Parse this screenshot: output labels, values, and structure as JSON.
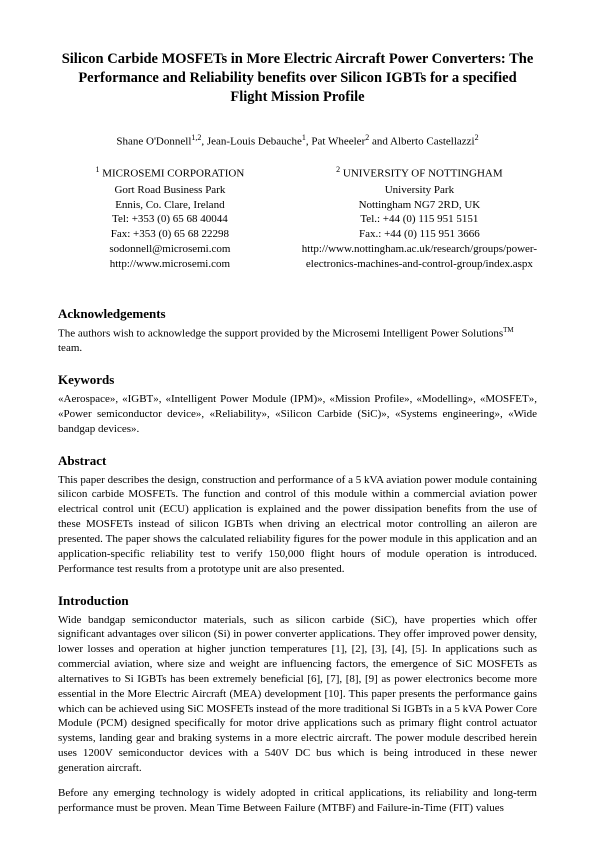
{
  "title": "Silicon Carbide MOSFETs in More Electric Aircraft Power Converters: The Performance and Reliability benefits over Silicon IGBTs for a specified Flight Mission Profile",
  "authors_prefix": "Shane O'Donnell",
  "authors_sup1": "1,2",
  "authors_mid": ", Jean-Louis Debauche",
  "authors_sup2": "1",
  "authors_mid2": ", Pat Wheeler",
  "authors_sup3": "2",
  "authors_mid3": " and Alberto Castellazzi",
  "authors_sup4": "2",
  "affil1": {
    "sup": "1",
    "name": " MICROSEMI CORPORATION",
    "line1": "Gort Road Business Park",
    "line2": "Ennis, Co. Clare, Ireland",
    "line3": "Tel: +353 (0) 65 68 40044",
    "line4": "Fax: +353 (0) 65 68 22298",
    "line5": "sodonnell@microsemi.com",
    "line6": "http://www.microsemi.com"
  },
  "affil2": {
    "sup": "2",
    "name": " UNIVERSITY OF NOTTINGHAM",
    "line1": "University Park",
    "line2": "Nottingham NG7 2RD, UK",
    "line3": "Tel.: +44 (0) 115 951 5151",
    "line4": "Fax.: +44 (0) 115 951 3666",
    "line5": "http://www.nottingham.ac.uk/research/groups/power-",
    "line6": "electronics-machines-and-control-group/index.aspx"
  },
  "ack_heading": "Acknowledgements",
  "ack_text_pre": "The authors wish to acknowledge the support provided by the Microsemi Intelligent Power Solutions",
  "ack_tm": "TM",
  "ack_text_post": " team.",
  "keywords_heading": "Keywords",
  "keywords_text": "«Aerospace», «IGBT», «Intelligent Power Module (IPM)», «Mission Profile», «Modelling», «MOSFET», «Power semiconductor device», «Reliability», «Silicon Carbide (SiC)», «Systems engineering», «Wide bandgap devices».",
  "abstract_heading": "Abstract",
  "abstract_text": "This paper describes the design, construction and performance of a 5 kVA aviation power module containing silicon carbide MOSFETs. The function and control of this module within a commercial aviation power electrical control unit (ECU) application is explained and the power dissipation benefits from the use of these MOSFETs instead of silicon IGBTs when driving an electrical motor controlling an aileron are presented. The paper shows the calculated reliability figures for the power module in this application and an application-specific reliability test to verify 150,000 flight hours of module operation is introduced. Performance test results from a prototype unit are also presented.",
  "intro_heading": "Introduction",
  "intro_p1": "Wide bandgap semiconductor materials, such as silicon carbide (SiC), have properties which offer significant advantages over silicon (Si) in power converter applications. They offer improved power density, lower losses and operation at higher junction temperatures [1], [2], [3], [4], [5]. In applications such as commercial aviation, where size and weight are influencing factors, the emergence of SiC MOSFETs as alternatives to Si IGBTs has been extremely beneficial [6], [7], [8], [9] as power electronics become more essential in the More Electric Aircraft (MEA) development [10]. This paper presents the performance gains which can be achieved using SiC MOSFETs instead of the more traditional Si IGBTs in a 5 kVA Power Core Module (PCM) designed specifically for motor drive applications such as primary flight control actuator systems, landing gear and braking systems in a more electric aircraft. The power module described herein uses 1200V semiconductor devices with a 540V DC bus which is being introduced in these newer generation aircraft.",
  "intro_p2": "Before any emerging technology is widely adopted in critical applications, its reliability and long-term performance must be proven. Mean Time Between Failure (MTBF) and Failure-in-Time (FIT) values"
}
